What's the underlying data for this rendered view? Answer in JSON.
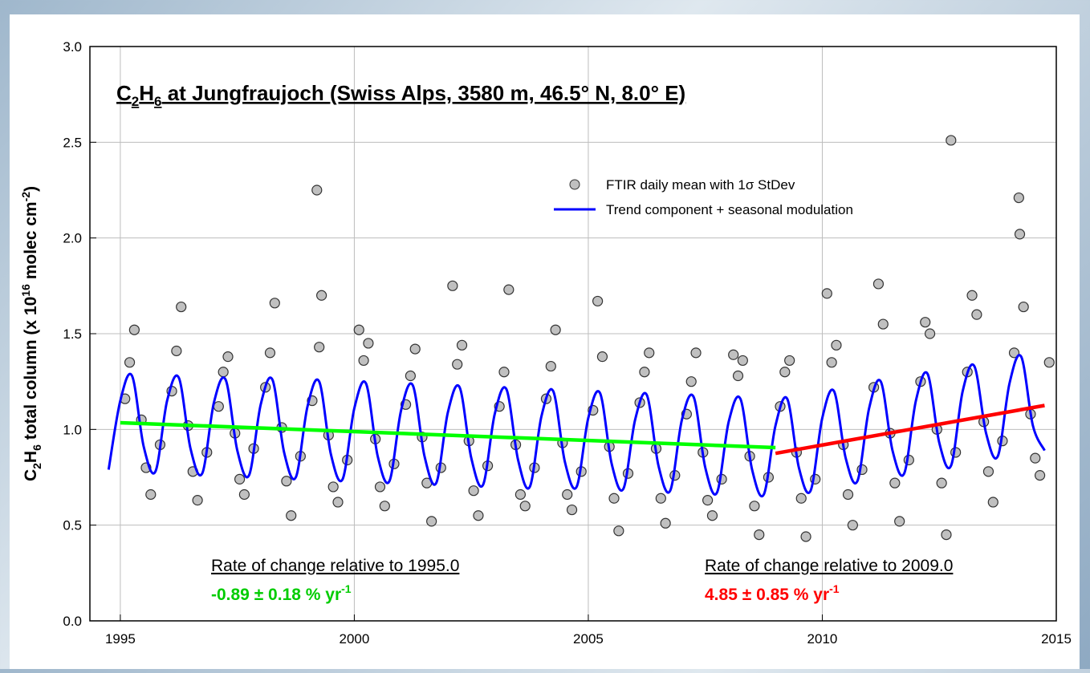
{
  "chart_data": {
    "type": "scatter",
    "title_parts": [
      "C",
      "2",
      "H",
      "6",
      " at Jungfraujoch (Swiss Alps, 3580 m, 46.5° N, 8.0° E)"
    ],
    "ylabel_parts": [
      "C",
      "2",
      "H",
      "6",
      " total column (x 10",
      "16",
      " molec cm",
      "-2",
      ")"
    ],
    "xlim": [
      1994.35,
      2015
    ],
    "xticks": [
      1995,
      2000,
      2005,
      2010,
      2015
    ],
    "ylim": [
      0,
      3
    ],
    "yticks": [
      {
        "value": 0,
        "label": "0.0"
      },
      0.5,
      {
        "value": 1,
        "label": "1.0"
      },
      1.5,
      {
        "value": 2,
        "label": "2.0"
      },
      2.5,
      {
        "value": 3,
        "label": "3.0"
      }
    ],
    "grid": true,
    "points": {
      "name": "FTIR daily mean with 1σ StDev",
      "color": "#c0c0c0",
      "x": [
        1995.1,
        1995.2,
        1995.3,
        1995.45,
        1995.55,
        1995.65,
        1995.85,
        1996.1,
        1996.2,
        1996.3,
        1996.45,
        1996.55,
        1996.65,
        1996.85,
        1997.1,
        1997.2,
        1997.3,
        1997.45,
        1997.55,
        1997.65,
        1997.85,
        1998.1,
        1998.2,
        1998.3,
        1998.45,
        1998.55,
        1998.65,
        1998.85,
        1999.1,
        1999.2,
        1999.25,
        1999.3,
        1999.45,
        1999.55,
        1999.65,
        1999.85,
        2000.1,
        2000.2,
        2000.3,
        2000.45,
        2000.55,
        2000.65,
        2000.85,
        2001.1,
        2001.2,
        2001.3,
        2001.45,
        2001.55,
        2001.65,
        2001.85,
        2002.1,
        2002.2,
        2002.3,
        2002.45,
        2002.55,
        2002.65,
        2002.85,
        2003.1,
        2003.2,
        2003.3,
        2003.45,
        2003.55,
        2003.65,
        2003.85,
        2004.1,
        2004.2,
        2004.3,
        2004.45,
        2004.55,
        2004.65,
        2004.85,
        2005.1,
        2005.2,
        2005.3,
        2005.45,
        2005.55,
        2005.65,
        2005.85,
        2006.1,
        2006.2,
        2006.3,
        2006.45,
        2006.55,
        2006.65,
        2006.85,
        2007.1,
        2007.2,
        2007.3,
        2007.45,
        2007.55,
        2007.65,
        2007.85,
        2008.1,
        2008.2,
        2008.3,
        2008.45,
        2008.55,
        2008.65,
        2008.85,
        2009.1,
        2009.2,
        2009.3,
        2009.45,
        2009.55,
        2009.65,
        2009.85,
        2010.1,
        2010.2,
        2010.3,
        2010.45,
        2010.55,
        2010.65,
        2010.85,
        2011.1,
        2011.2,
        2011.3,
        2011.45,
        2011.55,
        2011.65,
        2011.85,
        2012.1,
        2012.2,
        2012.3,
        2012.45,
        2012.55,
        2012.65,
        2012.75,
        2012.85,
        2013.1,
        2013.2,
        2013.3,
        2013.45,
        2013.55,
        2013.65,
        2013.85,
        2014.1,
        2014.2,
        2014.22,
        2014.3,
        2014.45,
        2014.55,
        2014.65,
        2014.85
      ],
      "values": [
        1.16,
        1.35,
        1.52,
        1.05,
        0.8,
        0.66,
        0.92,
        1.2,
        1.41,
        1.64,
        1.02,
        0.78,
        0.63,
        0.88,
        1.12,
        1.3,
        1.38,
        0.98,
        0.74,
        0.66,
        0.9,
        1.22,
        1.4,
        1.66,
        1.01,
        0.73,
        0.55,
        0.86,
        1.15,
        2.25,
        1.43,
        1.7,
        0.97,
        0.7,
        0.62,
        0.84,
        1.52,
        1.36,
        1.45,
        0.95,
        0.7,
        0.6,
        0.82,
        1.13,
        1.28,
        1.42,
        0.96,
        0.72,
        0.52,
        0.8,
        1.75,
        1.34,
        1.44,
        0.94,
        0.68,
        0.55,
        0.81,
        1.12,
        1.3,
        1.73,
        0.92,
        0.66,
        0.6,
        0.8,
        1.16,
        1.33,
        1.52,
        0.93,
        0.66,
        0.58,
        0.78,
        1.1,
        1.67,
        1.38,
        0.91,
        0.64,
        0.47,
        0.77,
        1.14,
        1.3,
        1.4,
        0.9,
        0.64,
        0.51,
        0.76,
        1.08,
        1.25,
        1.4,
        0.88,
        0.63,
        0.55,
        0.74,
        1.39,
        1.28,
        1.36,
        0.86,
        0.6,
        0.45,
        0.75,
        1.12,
        1.3,
        1.36,
        0.88,
        0.64,
        0.44,
        0.74,
        1.71,
        1.35,
        1.44,
        0.92,
        0.66,
        0.5,
        0.79,
        1.22,
        1.76,
        1.55,
        0.98,
        0.72,
        0.52,
        0.84,
        1.25,
        1.56,
        1.5,
        1.0,
        0.72,
        0.45,
        2.51,
        0.88,
        1.3,
        1.7,
        1.6,
        1.04,
        0.78,
        0.62,
        0.94,
        1.4,
        2.21,
        2.02,
        1.64,
        1.08,
        0.85,
        0.76,
        1.35
      ]
    },
    "curve": {
      "name": "Trend component + seasonal modulation",
      "color": "#0000ff",
      "x": [
        1994.75,
        1995,
        1995.25,
        1995.5,
        1995.75,
        1996,
        1996.25,
        1996.5,
        1996.75,
        1997,
        1997.25,
        1997.5,
        1997.75,
        1998,
        1998.25,
        1998.5,
        1998.75,
        1999,
        1999.25,
        1999.5,
        1999.75,
        2000,
        2000.25,
        2000.5,
        2000.75,
        2001,
        2001.25,
        2001.5,
        2001.75,
        2002,
        2002.25,
        2002.5,
        2002.75,
        2003,
        2003.25,
        2003.5,
        2003.75,
        2004,
        2004.25,
        2004.5,
        2004.75,
        2005,
        2005.25,
        2005.5,
        2005.75,
        2006,
        2006.25,
        2006.5,
        2006.75,
        2007,
        2007.25,
        2007.5,
        2007.75,
        2008,
        2008.25,
        2008.5,
        2008.75,
        2009,
        2009.25,
        2009.5,
        2009.75,
        2010,
        2010.25,
        2010.5,
        2010.75,
        2011,
        2011.25,
        2011.5,
        2011.75,
        2012,
        2012.25,
        2012.5,
        2012.75,
        2013,
        2013.25,
        2013.5,
        2013.75,
        2014,
        2014.25,
        2014.5,
        2014.75
      ],
      "values": [
        0.79,
        1.15,
        1.28,
        0.91,
        0.78,
        1.15,
        1.27,
        0.9,
        0.77,
        1.14,
        1.26,
        0.89,
        0.76,
        1.13,
        1.26,
        0.88,
        0.75,
        1.12,
        1.25,
        0.87,
        0.74,
        1.11,
        1.24,
        0.86,
        0.73,
        1.1,
        1.23,
        0.86,
        0.72,
        1.09,
        1.22,
        0.85,
        0.71,
        1.08,
        1.21,
        0.84,
        0.7,
        1.07,
        1.2,
        0.83,
        0.7,
        1.06,
        1.19,
        0.82,
        0.69,
        1.05,
        1.18,
        0.81,
        0.68,
        1.05,
        1.17,
        0.8,
        0.67,
        1.04,
        1.16,
        0.79,
        0.66,
        1.02,
        1.16,
        0.8,
        0.68,
        1.06,
        1.2,
        0.85,
        0.73,
        1.11,
        1.25,
        0.89,
        0.77,
        1.15,
        1.29,
        0.93,
        0.81,
        1.2,
        1.33,
        0.98,
        0.86,
        1.24,
        1.38,
        1.02,
        0.89
      ]
    },
    "trend_lines": [
      {
        "color": "#00ff00",
        "x": [
          1995,
          2009
        ],
        "values": [
          1.035,
          0.905
        ]
      },
      {
        "color": "#ff0000",
        "x": [
          2009,
          2014.75
        ],
        "values": [
          0.875,
          1.125
        ]
      }
    ],
    "annotations": [
      {
        "text": "Rate of change relative to 1995.0",
        "rate": "-0.89 ± 0.18 % yr",
        "unit_exp": "-1",
        "color": "#00cc00"
      },
      {
        "text": "Rate of change relative to 2009.0",
        "rate": "4.85 ± 0.85 % yr",
        "unit_exp": "-1",
        "color": "#ff0000"
      }
    ]
  }
}
